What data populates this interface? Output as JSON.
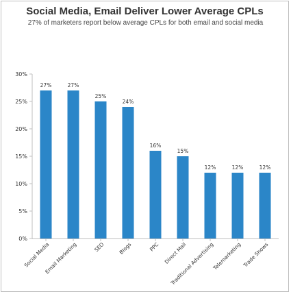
{
  "chart_data": {
    "type": "bar",
    "title": "Social Media, Email Deliver Lower Average CPLs",
    "subtitle": "27% of marketers report below average CPLs for both email and social media",
    "xlabel": "",
    "ylabel": "",
    "categories": [
      "Social Media",
      "Email Marketing",
      "SEO",
      "Blogs",
      "PPC",
      "Direct Mail",
      "Traditional Advertising",
      "Telemarketing",
      "Trade Shows"
    ],
    "values": [
      27,
      27,
      25,
      24,
      16,
      15,
      12,
      12,
      12
    ],
    "data_labels": [
      "27%",
      "27%",
      "25%",
      "24%",
      "16%",
      "15%",
      "12%",
      "12%",
      "12%"
    ],
    "ylim": [
      0,
      30
    ],
    "yticks": [
      0,
      5,
      10,
      15,
      20,
      25,
      30
    ],
    "ytick_labels": [
      "0%",
      "5%",
      "10%",
      "15%",
      "20%",
      "25%",
      "30%"
    ],
    "grid": false,
    "legend": "none",
    "colors": {
      "bar": "#2b86c8",
      "axis": "#bfbfbf",
      "frame": "#bdbdbd"
    }
  }
}
